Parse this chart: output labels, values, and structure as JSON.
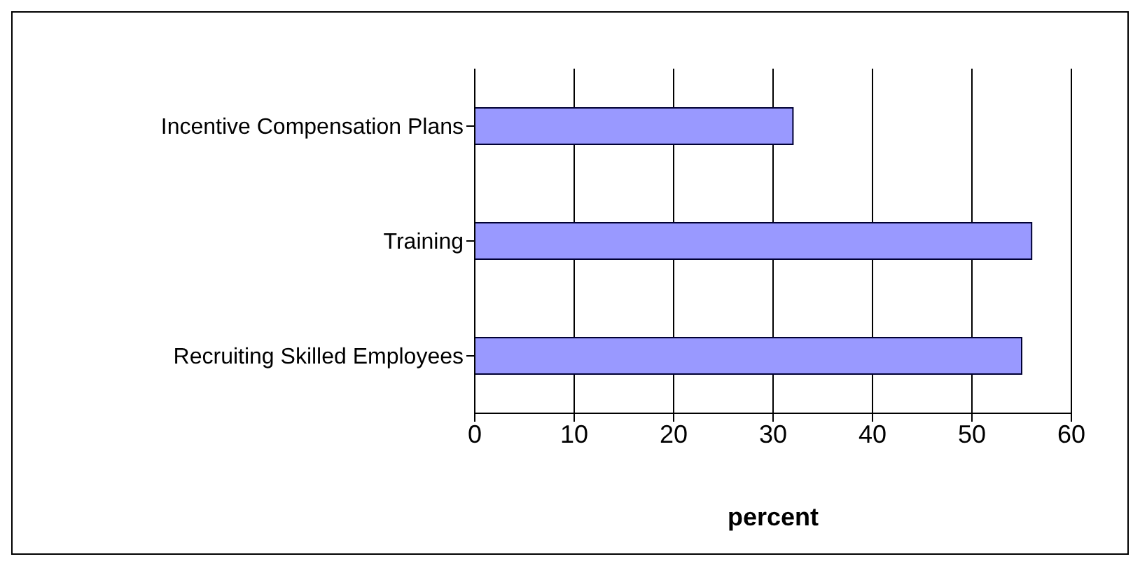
{
  "chart_data": {
    "type": "bar",
    "orientation": "horizontal",
    "categories": [
      "Incentive Compensation Plans",
      "Training",
      "Recruiting Skilled Employees"
    ],
    "values": [
      32,
      56,
      55
    ],
    "color": "#9999ff",
    "xlabel": "percent",
    "xlim": [
      0,
      60
    ],
    "xticks": [
      0,
      10,
      20,
      30,
      40,
      50,
      60
    ],
    "grid": "x",
    "legend": false
  }
}
